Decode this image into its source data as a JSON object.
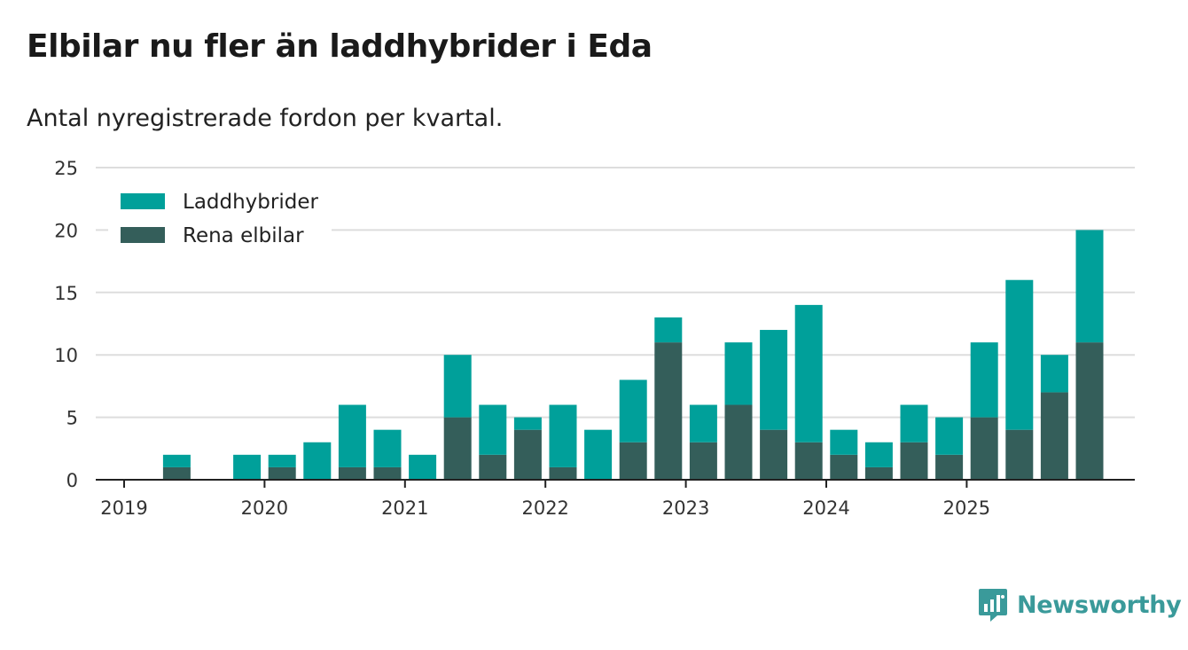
{
  "title": "Elbilar nu fler än laddhybrider i Eda",
  "subtitle": "Antal nyregistrerade fordon per kvartal.",
  "brand": {
    "name": "Newsworthy",
    "icon": "bar-chart-speech-bubble-icon"
  },
  "colors": {
    "phev": "#00a09a",
    "bev": "#345e5a",
    "grid": "#dddddd",
    "axis": "#222222",
    "brand": "#3a9a9a"
  },
  "chart_data": {
    "type": "bar",
    "stacked": true,
    "xlabel": "",
    "ylabel": "",
    "ylim": [
      0,
      25
    ],
    "yticks": [
      0,
      5,
      10,
      15,
      20,
      25
    ],
    "xticks": [
      "2019",
      "2020",
      "2021",
      "2022",
      "2023",
      "2024",
      "2025"
    ],
    "legend_position": "top-left",
    "categories": [
      "2019 Q1",
      "2019 Q2",
      "2019 Q3",
      "2019 Q4",
      "2020 Q1",
      "2020 Q2",
      "2020 Q3",
      "2020 Q4",
      "2021 Q1",
      "2021 Q2",
      "2021 Q3",
      "2021 Q4",
      "2022 Q1",
      "2022 Q2",
      "2022 Q3",
      "2022 Q4",
      "2023 Q1",
      "2023 Q2",
      "2023 Q3",
      "2023 Q4",
      "2024 Q1",
      "2024 Q2",
      "2024 Q3",
      "2024 Q4",
      "2025 Q1",
      "2025 Q2",
      "2025 Q3",
      "2025 Q4"
    ],
    "series": [
      {
        "name": "Rena elbilar",
        "values": [
          0,
          1,
          0,
          0,
          1,
          0,
          1,
          1,
          0,
          5,
          2,
          4,
          1,
          0,
          3,
          11,
          3,
          6,
          4,
          3,
          2,
          1,
          3,
          2,
          5,
          4,
          7,
          11
        ]
      },
      {
        "name": "Laddhybrider",
        "values": [
          0,
          1,
          0,
          2,
          1,
          3,
          5,
          3,
          2,
          5,
          4,
          1,
          5,
          4,
          5,
          2,
          3,
          5,
          8,
          11,
          2,
          2,
          3,
          3,
          6,
          12,
          3,
          9
        ]
      }
    ]
  }
}
